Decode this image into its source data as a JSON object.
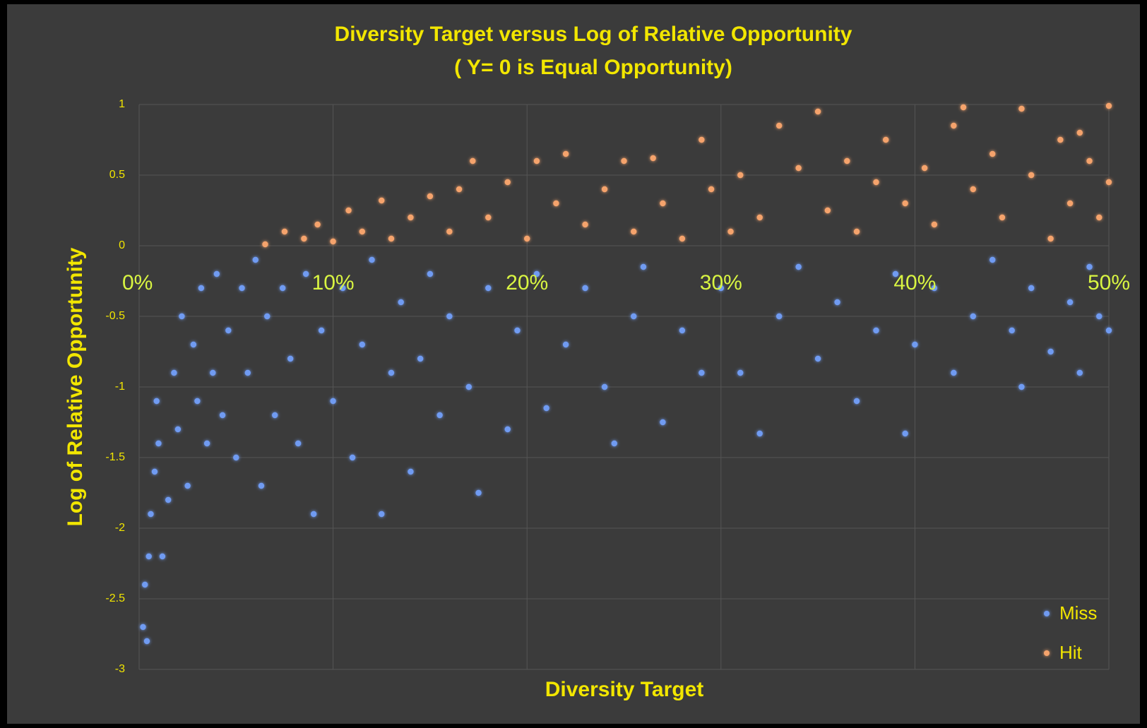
{
  "chart_data": {
    "type": "scatter",
    "title": "Diversity Target versus Log of Relative Opportunity",
    "subtitle": "( Y= 0 is Equal Opportunity)",
    "x_label": "Diversity Target",
    "y_label": "Log of Relative Opportunity",
    "xlim": [
      0,
      50
    ],
    "xticks": [
      {
        "value": 0,
        "label": "0%"
      },
      {
        "value": 10,
        "label": "10%"
      },
      {
        "value": 20,
        "label": "20%"
      },
      {
        "value": 30,
        "label": "30%"
      },
      {
        "value": 40,
        "label": "40%"
      },
      {
        "value": 50,
        "label": "50%"
      }
    ],
    "ylim": [
      -3,
      1
    ],
    "yticks": [
      1,
      0.5,
      0,
      -0.5,
      -1,
      -1.5,
      -2,
      -2.5,
      -3
    ],
    "grid": true,
    "legend": "lower right",
    "series": [
      {
        "name": "Miss",
        "color": "#6f9bf2",
        "x": [
          0.2,
          0.4,
          0.3,
          0.5,
          0.6,
          0.8,
          1,
          1.2,
          0.9,
          1.5,
          1.8,
          2,
          2.2,
          2.5,
          2.8,
          3,
          3.2,
          3.5,
          3.8,
          4,
          4.3,
          4.6,
          5,
          5.3,
          5.6,
          6,
          6.3,
          6.6,
          7,
          7.4,
          7.8,
          8.2,
          8.6,
          9,
          9.4,
          10,
          10.5,
          11,
          11.5,
          12,
          12.5,
          13,
          13.5,
          14,
          14.5,
          15,
          15.5,
          16,
          17,
          17.5,
          18,
          19,
          19.5,
          20.5,
          21,
          22,
          23,
          24,
          24.5,
          25.5,
          26,
          27,
          28,
          29,
          30,
          31,
          32,
          33,
          34,
          35,
          36,
          37,
          38,
          39,
          39.5,
          40,
          41,
          42,
          43,
          44,
          45,
          45.5,
          46,
          47,
          48,
          48.5,
          49,
          49.5,
          50
        ],
        "values": [
          -2.7,
          -2.8,
          -2.4,
          -2.2,
          -1.9,
          -1.6,
          -1.4,
          -2.2,
          -1.1,
          -1.8,
          -0.9,
          -1.3,
          -0.5,
          -1.7,
          -0.7,
          -1.1,
          -0.3,
          -1.4,
          -0.9,
          -0.2,
          -1.2,
          -0.6,
          -1.5,
          -0.3,
          -0.9,
          -0.1,
          -1.7,
          -0.5,
          -1.2,
          -0.3,
          -0.8,
          -1.4,
          -0.2,
          -1.9,
          -0.6,
          -1.1,
          -0.3,
          -1.5,
          -0.7,
          -0.1,
          -1.9,
          -0.9,
          -0.4,
          -1.6,
          -0.8,
          -0.2,
          -1.2,
          -0.5,
          -1.0,
          -1.75,
          -0.3,
          -1.3,
          -0.6,
          -0.2,
          -1.15,
          -0.7,
          -0.3,
          -1.0,
          -1.4,
          -0.5,
          -0.15,
          -1.25,
          -0.6,
          -0.9,
          -0.3,
          -0.9,
          -1.33,
          -0.5,
          -0.15,
          -0.8,
          -0.4,
          -1.1,
          -0.6,
          -0.2,
          -1.33,
          -0.7,
          -0.3,
          -0.9,
          -0.5,
          -0.1,
          -0.6,
          -1.0,
          -0.3,
          -0.75,
          -0.4,
          -0.9,
          -0.15,
          -0.5,
          -0.6
        ]
      },
      {
        "name": "Hit",
        "color": "#f5a36c",
        "x": [
          6.5,
          7.5,
          8.5,
          9.2,
          10,
          10.8,
          11.5,
          12.5,
          13,
          14,
          15,
          16,
          16.5,
          17.2,
          18,
          19,
          20,
          20.5,
          21.5,
          22,
          23,
          24,
          25,
          25.5,
          26.5,
          27,
          28,
          29,
          29.5,
          30.5,
          31,
          32,
          33,
          34,
          35,
          35.5,
          36.5,
          37,
          38,
          38.5,
          39.5,
          40.5,
          41,
          42,
          42.5,
          43,
          44,
          44.5,
          45.5,
          46,
          47,
          47.5,
          48,
          48.5,
          49,
          49.5,
          50,
          50
        ],
        "values": [
          0.01,
          0.1,
          0.05,
          0.15,
          0.03,
          0.25,
          0.1,
          0.32,
          0.05,
          0.2,
          0.35,
          0.1,
          0.4,
          0.6,
          0.2,
          0.45,
          0.05,
          0.6,
          0.3,
          0.65,
          0.15,
          0.4,
          0.6,
          0.1,
          0.62,
          0.3,
          0.05,
          0.75,
          0.4,
          0.1,
          0.5,
          0.2,
          0.85,
          0.55,
          0.95,
          0.25,
          0.6,
          0.1,
          0.45,
          0.75,
          0.3,
          0.55,
          0.15,
          0.85,
          0.98,
          0.4,
          0.65,
          0.2,
          0.97,
          0.5,
          0.05,
          0.75,
          0.3,
          0.8,
          0.6,
          0.2,
          0.99,
          0.45
        ]
      }
    ]
  }
}
